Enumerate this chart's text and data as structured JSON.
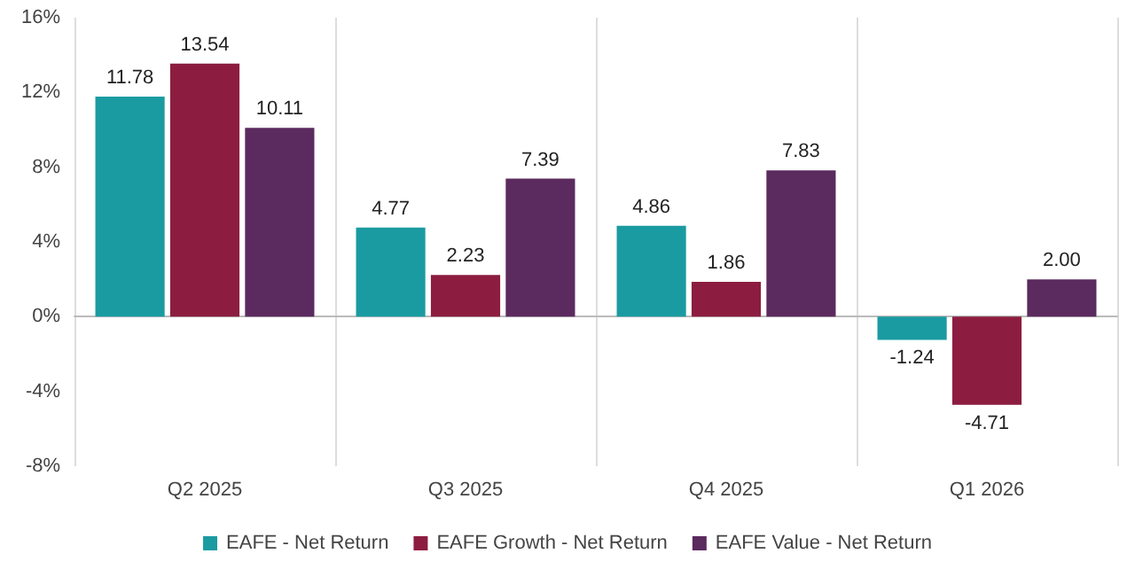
{
  "chart_data": {
    "type": "bar",
    "categories": [
      "Q2 2025",
      "Q3 2025",
      "Q4 2025",
      "Q1 2026"
    ],
    "series": [
      {
        "name": "EAFE - Net Return",
        "color": "#1a9ba1",
        "values": [
          11.78,
          4.77,
          4.86,
          -1.24
        ]
      },
      {
        "name": "EAFE Growth - Net Return",
        "color": "#8c1d40",
        "values": [
          13.54,
          2.23,
          1.86,
          -4.71
        ]
      },
      {
        "name": "EAFE Value - Net Return",
        "color": "#5b2a5f",
        "values": [
          10.11,
          7.39,
          7.83,
          2.0
        ]
      }
    ],
    "ylim": [
      -8,
      16
    ],
    "yticks": [
      {
        "value": -8,
        "label": "-8%"
      },
      {
        "value": -4,
        "label": "-4%"
      },
      {
        "value": 0,
        "label": "0%"
      },
      {
        "value": 4,
        "label": "4%"
      },
      {
        "value": 8,
        "label": "8%"
      },
      {
        "value": 12,
        "label": "12%"
      },
      {
        "value": 16,
        "label": "16%"
      }
    ],
    "value_labels": [
      [
        "11.78",
        "4.77",
        "4.86",
        "-1.24"
      ],
      [
        "13.54",
        "2.23",
        "1.86",
        "-4.71"
      ],
      [
        "10.11",
        "7.39",
        "7.83",
        "2.00"
      ]
    ],
    "grid": "x",
    "legend": "bottom"
  }
}
